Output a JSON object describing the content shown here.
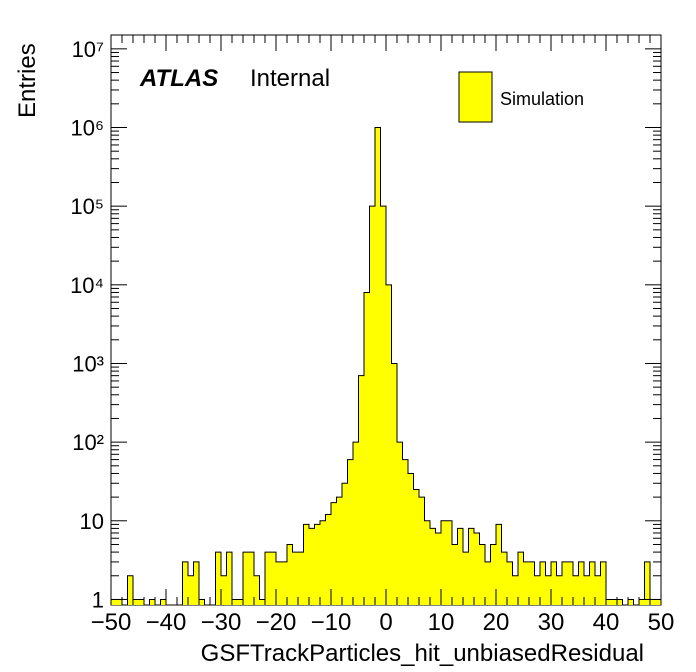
{
  "chart_data": {
    "type": "bar",
    "subtype": "histogram",
    "xlabel": "GSFTrackParticles_hit_unbiasedResidual",
    "ylabel": "Entries",
    "xlim": [
      -50,
      50
    ],
    "ylim": [
      0.85,
      15000000
    ],
    "yscale": "log",
    "x_ticks": [
      "−50",
      "−40",
      "−30",
      "−20",
      "−10",
      "0",
      "10",
      "20",
      "30",
      "40",
      "50"
    ],
    "y_ticks": [
      "1",
      "10",
      "10²",
      "10³",
      "10⁴",
      "10⁵",
      "10⁶",
      "10⁷"
    ],
    "bin_width": 1,
    "bin_low_edges": [
      -50,
      -49,
      -48,
      -47,
      -46,
      -45,
      -44,
      -43,
      -42,
      -41,
      -40,
      -39,
      -38,
      -37,
      -36,
      -35,
      -34,
      -33,
      -32,
      -31,
      -30,
      -29,
      -28,
      -27,
      -26,
      -25,
      -24,
      -23,
      -22,
      -21,
      -20,
      -19,
      -18,
      -17,
      -16,
      -15,
      -14,
      -13,
      -12,
      -11,
      -10,
      -9,
      -8,
      -7,
      -6,
      -5,
      -4,
      -3,
      -2,
      -1,
      0,
      1,
      2,
      3,
      4,
      5,
      6,
      7,
      8,
      9,
      10,
      11,
      12,
      13,
      14,
      15,
      16,
      17,
      18,
      19,
      20,
      21,
      22,
      23,
      24,
      25,
      26,
      27,
      28,
      29,
      30,
      31,
      32,
      33,
      34,
      35,
      36,
      37,
      38,
      39,
      40,
      41,
      42,
      43,
      44,
      45,
      46,
      47,
      48,
      49
    ],
    "values": [
      1,
      1,
      0,
      2,
      1,
      1,
      0,
      1,
      0,
      1,
      0,
      0,
      0,
      3,
      2,
      3,
      1,
      0,
      0,
      4,
      2,
      4,
      1,
      1,
      4,
      4,
      2,
      1,
      4,
      4,
      3,
      3,
      5,
      4,
      4,
      9,
      8,
      9,
      10,
      12,
      17,
      20,
      30,
      60,
      100,
      700,
      8000,
      100000,
      1000000,
      100000,
      10000,
      1000,
      100,
      60,
      40,
      25,
      20,
      10,
      8,
      7,
      10,
      10,
      5,
      8,
      4,
      8,
      7,
      5,
      3,
      5,
      9,
      4,
      3,
      2,
      4,
      3,
      3,
      2,
      3,
      2,
      3,
      2,
      3,
      3,
      2,
      3,
      2,
      3,
      2,
      3,
      1,
      1,
      1,
      0,
      1,
      0,
      1,
      3,
      1,
      1
    ],
    "series": [
      {
        "name": "Simulation",
        "color": "#ffff00"
      }
    ],
    "legend_position": "top-right"
  },
  "annotations": {
    "atlas": "ATLAS",
    "internal": "Internal"
  },
  "legend": {
    "label": "Simulation"
  }
}
